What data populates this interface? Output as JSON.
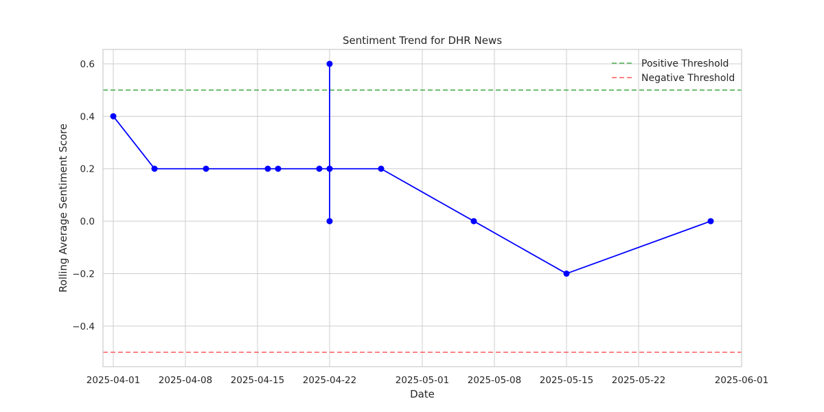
{
  "chart_data": {
    "type": "line",
    "title": "Sentiment Trend for DHR News",
    "xlabel": "Date",
    "ylabel": "Rolling Average Sentiment Score",
    "x_type": "date",
    "xlim": [
      "2025-03-31",
      "2025-06-01"
    ],
    "ylim": [
      -0.555,
      0.655
    ],
    "x_ticks": [
      "2025-04-01",
      "2025-04-08",
      "2025-04-15",
      "2025-04-22",
      "2025-05-01",
      "2025-05-08",
      "2025-05-15",
      "2025-05-22",
      "2025-06-01"
    ],
    "y_ticks": [
      -0.4,
      -0.2,
      0.0,
      0.2,
      0.4,
      0.6
    ],
    "y_tick_labels": [
      "−0.4",
      "−0.2",
      "0.0",
      "0.2",
      "0.4",
      "0.6"
    ],
    "grid": true,
    "legend_position": "top-right",
    "series": [
      {
        "color": "#0000ff",
        "marker": "circle",
        "points": [
          {
            "x": "2025-04-01",
            "y": 0.4
          },
          {
            "x": "2025-04-05",
            "y": 0.2
          },
          {
            "x": "2025-04-10",
            "y": 0.2
          },
          {
            "x": "2025-04-16",
            "y": 0.2
          },
          {
            "x": "2025-04-17",
            "y": 0.2
          },
          {
            "x": "2025-04-21",
            "y": 0.2
          },
          {
            "x": "2025-04-22",
            "y": 0.2
          },
          {
            "x": "2025-04-22",
            "y": 0.0
          },
          {
            "x": "2025-04-22",
            "y": 0.6
          },
          {
            "x": "2025-04-22",
            "y": 0.2
          },
          {
            "x": "2025-04-27",
            "y": 0.2
          },
          {
            "x": "2025-05-06",
            "y": 0.0
          },
          {
            "x": "2025-05-15",
            "y": -0.2
          },
          {
            "x": "2025-05-29",
            "y": 0.0
          }
        ]
      }
    ],
    "reference_lines": [
      {
        "name": "Positive Threshold",
        "y": 0.5,
        "color": "#4caf50",
        "style": "dashed"
      },
      {
        "name": "Negative Threshold",
        "y": -0.5,
        "color": "#ff5a5a",
        "style": "dashed"
      }
    ]
  }
}
